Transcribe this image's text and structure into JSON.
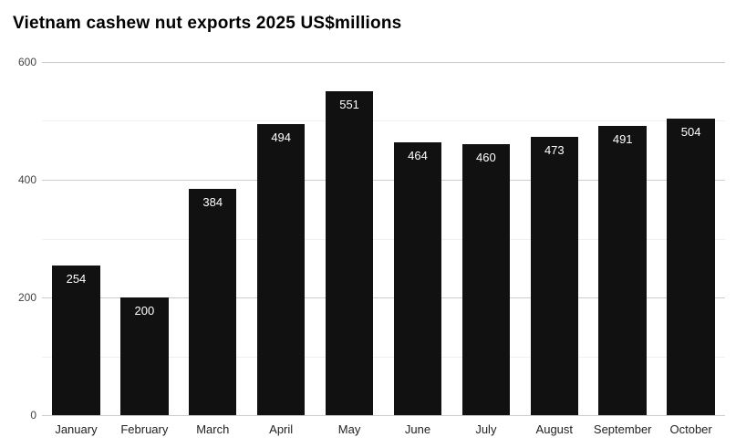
{
  "chart_data": {
    "type": "bar",
    "title": "Vietnam cashew nut exports 2025 US$millions",
    "categories": [
      "January",
      "February",
      "March",
      "April",
      "May",
      "June",
      "July",
      "August",
      "September",
      "October"
    ],
    "values": [
      254,
      200,
      384,
      494,
      551,
      464,
      460,
      473,
      491,
      504
    ],
    "xlabel": "",
    "ylabel": "",
    "ylim": [
      0,
      600
    ],
    "yticks": [
      0,
      200,
      400,
      600
    ],
    "minor_ticks": [
      100,
      300,
      500
    ],
    "grid": true,
    "legend": "none",
    "bar_color": "#111111",
    "value_label_color": "#ffffff",
    "axis_tick_color": "#444444",
    "category_label_color": "#222222",
    "gridline_color": "#cccccc",
    "minor_gridline_color": "#f0f0f0",
    "background_color": "#ffffff"
  }
}
